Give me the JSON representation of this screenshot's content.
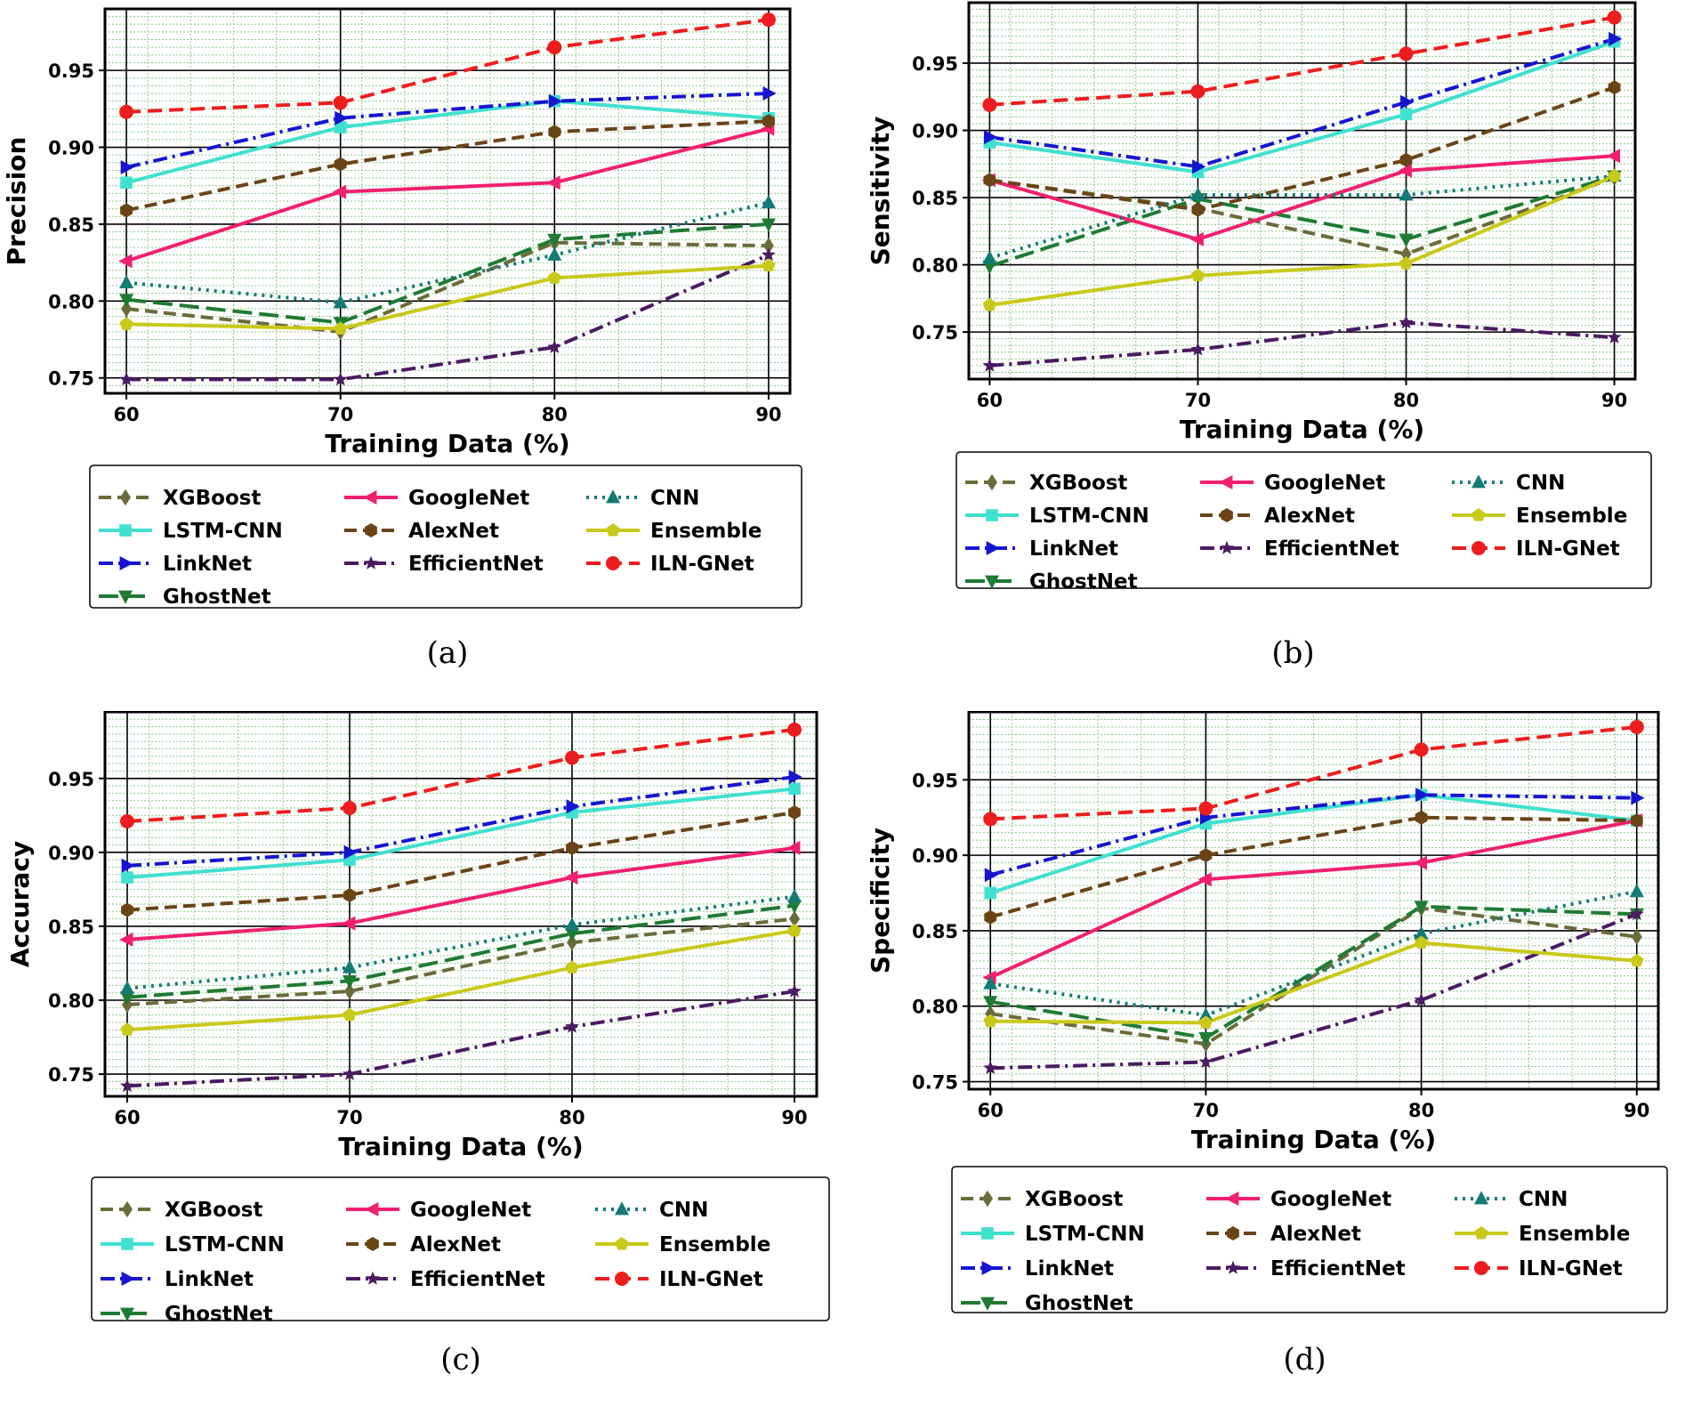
{
  "styles": {
    "XGBoost": {
      "color": "#6b6b3a",
      "marker": "diamond",
      "dash": "14,7"
    },
    "LSTM-CNN": {
      "color": "#40e0d0",
      "marker": "square",
      "dash": ""
    },
    "LinkNet": {
      "color": "#1515d0",
      "marker": "tri-right",
      "dash": "16,6,3,6"
    },
    "GhostNet": {
      "color": "#1e7b32",
      "marker": "tri-down",
      "dash": "22,8"
    },
    "GoogleNet": {
      "color": "#f0206e",
      "marker": "tri-left",
      "dash": ""
    },
    "AlexNet": {
      "color": "#6b4416",
      "marker": "hexagon",
      "dash": "14,7"
    },
    "EfficientNet": {
      "color": "#4b1a63",
      "marker": "star",
      "dash": "16,6,3,6"
    },
    "CNN": {
      "color": "#137b74",
      "marker": "tri-up",
      "dash": "3,6"
    },
    "Ensemble": {
      "color": "#c9c91a",
      "marker": "pentagon",
      "dash": ""
    },
    "ILN-GNet": {
      "color": "#ee1d1d",
      "marker": "circle",
      "dash": "16,8"
    }
  },
  "legend_columns": [
    [
      "XGBoost",
      "LSTM-CNN",
      "LinkNet",
      "GhostNet"
    ],
    [
      "GoogleNet",
      "AlexNet",
      "EfficientNet"
    ],
    [
      "CNN",
      "Ensemble",
      "ILN-GNet"
    ]
  ],
  "chart_data": [
    {
      "type": "line",
      "caption": "(a)",
      "xlabel": "Training Data (%)",
      "ylabel": "Precision",
      "x": [
        60,
        70,
        80,
        90
      ],
      "xlim": [
        59,
        91
      ],
      "ylim": [
        0.74,
        0.99
      ],
      "yticks": [
        "0.75",
        "0.80",
        "0.85",
        "0.90",
        "0.95"
      ],
      "grid": true,
      "series": [
        {
          "name": "XGBoost",
          "values": [
            0.795,
            0.78,
            0.838,
            0.836
          ]
        },
        {
          "name": "LSTM-CNN",
          "values": [
            0.877,
            0.913,
            0.93,
            0.919
          ]
        },
        {
          "name": "LinkNet",
          "values": [
            0.887,
            0.919,
            0.93,
            0.935
          ]
        },
        {
          "name": "GhostNet",
          "values": [
            0.801,
            0.786,
            0.84,
            0.85
          ]
        },
        {
          "name": "GoogleNet",
          "values": [
            0.826,
            0.871,
            0.877,
            0.912
          ]
        },
        {
          "name": "AlexNet",
          "values": [
            0.859,
            0.889,
            0.91,
            0.917
          ]
        },
        {
          "name": "EfficientNet",
          "values": [
            0.749,
            0.749,
            0.77,
            0.83
          ]
        },
        {
          "name": "CNN",
          "values": [
            0.812,
            0.799,
            0.83,
            0.864
          ]
        },
        {
          "name": "Ensemble",
          "values": [
            0.785,
            0.782,
            0.815,
            0.823
          ]
        },
        {
          "name": "ILN-GNet",
          "values": [
            0.923,
            0.929,
            0.965,
            0.983
          ]
        }
      ]
    },
    {
      "type": "line",
      "caption": "(b)",
      "xlabel": "Training Data (%)",
      "ylabel": "Sensitivity",
      "x": [
        60,
        70,
        80,
        90
      ],
      "xlim": [
        59,
        91
      ],
      "ylim": [
        0.715,
        0.995
      ],
      "yticks": [
        "0.75",
        "0.80",
        "0.85",
        "0.90",
        "0.95"
      ],
      "grid": true,
      "series": [
        {
          "name": "XGBoost",
          "values": [
            0.863,
            0.842,
            0.808,
            0.865
          ]
        },
        {
          "name": "LSTM-CNN",
          "values": [
            0.891,
            0.869,
            0.912,
            0.966
          ]
        },
        {
          "name": "LinkNet",
          "values": [
            0.895,
            0.873,
            0.921,
            0.968
          ]
        },
        {
          "name": "GhostNet",
          "values": [
            0.799,
            0.849,
            0.819,
            0.866
          ]
        },
        {
          "name": "GoogleNet",
          "values": [
            0.863,
            0.819,
            0.87,
            0.881
          ]
        },
        {
          "name": "AlexNet",
          "values": [
            0.863,
            0.841,
            0.878,
            0.932
          ]
        },
        {
          "name": "EfficientNet",
          "values": [
            0.725,
            0.737,
            0.757,
            0.746
          ]
        },
        {
          "name": "CNN",
          "values": [
            0.805,
            0.852,
            0.852,
            0.866
          ]
        },
        {
          "name": "Ensemble",
          "values": [
            0.77,
            0.792,
            0.801,
            0.866
          ]
        },
        {
          "name": "ILN-GNet",
          "values": [
            0.919,
            0.929,
            0.957,
            0.984
          ]
        }
      ]
    },
    {
      "type": "line",
      "caption": "(c)",
      "xlabel": "Training Data (%)",
      "ylabel": "Accuracy",
      "x": [
        60,
        70,
        80,
        90
      ],
      "xlim": [
        59,
        91
      ],
      "ylim": [
        0.735,
        0.995
      ],
      "yticks": [
        "0.75",
        "0.80",
        "0.85",
        "0.90",
        "0.95"
      ],
      "grid": true,
      "series": [
        {
          "name": "XGBoost",
          "values": [
            0.797,
            0.806,
            0.839,
            0.855
          ]
        },
        {
          "name": "LSTM-CNN",
          "values": [
            0.883,
            0.895,
            0.927,
            0.943
          ]
        },
        {
          "name": "LinkNet",
          "values": [
            0.891,
            0.9,
            0.931,
            0.951
          ]
        },
        {
          "name": "GhostNet",
          "values": [
            0.802,
            0.813,
            0.845,
            0.864
          ]
        },
        {
          "name": "GoogleNet",
          "values": [
            0.841,
            0.852,
            0.883,
            0.903
          ]
        },
        {
          "name": "AlexNet",
          "values": [
            0.861,
            0.871,
            0.903,
            0.927
          ]
        },
        {
          "name": "EfficientNet",
          "values": [
            0.742,
            0.75,
            0.782,
            0.806
          ]
        },
        {
          "name": "CNN",
          "values": [
            0.808,
            0.822,
            0.851,
            0.87
          ]
        },
        {
          "name": "Ensemble",
          "values": [
            0.78,
            0.79,
            0.822,
            0.847
          ]
        },
        {
          "name": "ILN-GNet",
          "values": [
            0.921,
            0.93,
            0.964,
            0.983
          ]
        }
      ]
    },
    {
      "type": "line",
      "caption": "(d)",
      "xlabel": "Training Data (%)",
      "ylabel": "Specificity",
      "x": [
        60,
        70,
        80,
        90
      ],
      "xlim": [
        59,
        91
      ],
      "ylim": [
        0.745,
        0.995
      ],
      "yticks": [
        "0.75",
        "0.80",
        "0.85",
        "0.90",
        "0.95"
      ],
      "grid": true,
      "series": [
        {
          "name": "XGBoost",
          "values": [
            0.795,
            0.775,
            0.865,
            0.846
          ]
        },
        {
          "name": "LSTM-CNN",
          "values": [
            0.875,
            0.921,
            0.94,
            0.923
          ]
        },
        {
          "name": "LinkNet",
          "values": [
            0.887,
            0.925,
            0.94,
            0.938
          ]
        },
        {
          "name": "GhostNet",
          "values": [
            0.803,
            0.779,
            0.866,
            0.861
          ]
        },
        {
          "name": "GoogleNet",
          "values": [
            0.819,
            0.884,
            0.895,
            0.923
          ]
        },
        {
          "name": "AlexNet",
          "values": [
            0.859,
            0.9,
            0.925,
            0.923
          ]
        },
        {
          "name": "EfficientNet",
          "values": [
            0.759,
            0.763,
            0.804,
            0.861
          ]
        },
        {
          "name": "CNN",
          "values": [
            0.815,
            0.794,
            0.848,
            0.876
          ]
        },
        {
          "name": "Ensemble",
          "values": [
            0.79,
            0.789,
            0.842,
            0.83
          ]
        },
        {
          "name": "ILN-GNet",
          "values": [
            0.924,
            0.931,
            0.97,
            0.985
          ]
        }
      ]
    }
  ]
}
